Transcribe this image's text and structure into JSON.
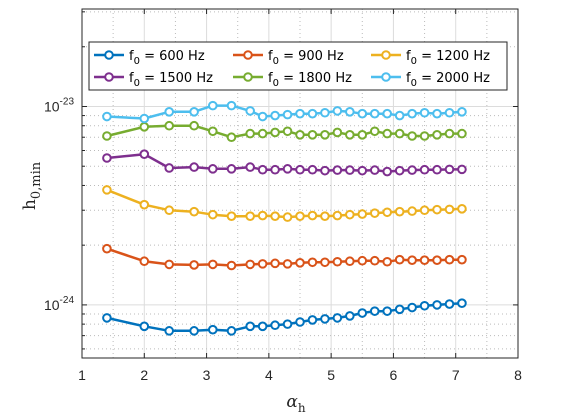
{
  "chart_data": {
    "type": "line",
    "xlabel": "α",
    "xlabel_sub": "h",
    "ylabel": "h",
    "ylabel_sub": "0,min",
    "xlim": [
      1,
      8
    ],
    "ylim": [
      5.4e-25,
      3.1e-23
    ],
    "yscale": "log",
    "grid": "major-and-minor",
    "xticks": [
      1,
      2,
      3,
      4,
      5,
      6,
      7,
      8
    ],
    "ytick_labels": [
      {
        "value": 1e-24,
        "base": "10",
        "exp": "-24"
      },
      {
        "value": 1e-23,
        "base": "10",
        "exp": "-23"
      }
    ],
    "legend": {
      "placement": "top",
      "columns": 3
    },
    "x": [
      1.4,
      2.0,
      2.4,
      2.8,
      3.1,
      3.4,
      3.7,
      3.9,
      4.1,
      4.3,
      4.5,
      4.7,
      4.9,
      5.1,
      5.3,
      5.5,
      5.7,
      5.9,
      6.1,
      6.3,
      6.5,
      6.7,
      6.9,
      7.1
    ],
    "series": [
      {
        "name": "f_0 = 600 Hz",
        "label_main": "f",
        "label_sub": "0",
        "label_rest": " = 600 Hz",
        "color": "#0072BD",
        "values": [
          8.6e-25,
          7.8e-25,
          7.4e-25,
          7.4e-25,
          7.5e-25,
          7.4e-25,
          7.8e-25,
          7.8e-25,
          7.9e-25,
          8e-25,
          8.2e-25,
          8.4e-25,
          8.5e-25,
          8.6e-25,
          8.8e-25,
          9.1e-25,
          9.3e-25,
          9.3e-25,
          9.5e-25,
          9.7e-25,
          9.9e-25,
          1e-24,
          1.01e-24,
          1.02e-24
        ]
      },
      {
        "name": "f_0 = 900 Hz",
        "label_main": "f",
        "label_sub": "0",
        "label_rest": " = 900 Hz",
        "color": "#D95319",
        "values": [
          1.92e-24,
          1.66e-24,
          1.6e-24,
          1.59e-24,
          1.6e-24,
          1.58e-24,
          1.6e-24,
          1.61e-24,
          1.62e-24,
          1.61e-24,
          1.63e-24,
          1.64e-24,
          1.64e-24,
          1.65e-24,
          1.66e-24,
          1.67e-24,
          1.67e-24,
          1.65e-24,
          1.69e-24,
          1.68e-24,
          1.68e-24,
          1.68e-24,
          1.69e-24,
          1.69e-24
        ]
      },
      {
        "name": "f_0 = 1200 Hz",
        "label_main": "f",
        "label_sub": "0",
        "label_rest": " = 1200 Hz",
        "color": "#EDB120",
        "values": [
          3.8e-24,
          3.2e-24,
          3e-24,
          2.95e-24,
          2.85e-24,
          2.8e-24,
          2.8e-24,
          2.82e-24,
          2.8e-24,
          2.77e-24,
          2.8e-24,
          2.82e-24,
          2.8e-24,
          2.82e-24,
          2.85e-24,
          2.87e-24,
          2.9e-24,
          2.93e-24,
          2.95e-24,
          2.97e-24,
          3e-24,
          3.02e-24,
          3.03e-24,
          3.05e-24
        ]
      },
      {
        "name": "f_0 = 1500 Hz",
        "label_main": "f",
        "label_sub": "0",
        "label_rest": " = 1500 Hz",
        "color": "#7E2F8E",
        "values": [
          5.5e-24,
          5.75e-24,
          4.9e-24,
          4.95e-24,
          4.85e-24,
          4.85e-24,
          4.95e-24,
          4.8e-24,
          4.8e-24,
          4.85e-24,
          4.8e-24,
          4.8e-24,
          4.75e-24,
          4.78e-24,
          4.78e-24,
          4.75e-24,
          4.78e-24,
          4.7e-24,
          4.75e-24,
          4.78e-24,
          4.8e-24,
          4.8e-24,
          4.82e-24,
          4.82e-24
        ]
      },
      {
        "name": "f_0 = 1800 Hz",
        "label_main": "f",
        "label_sub": "0",
        "label_rest": " = 1800 Hz",
        "color": "#77AC30",
        "values": [
          7.1e-24,
          7.9e-24,
          8e-24,
          8e-24,
          7.5e-24,
          7e-24,
          7.3e-24,
          7.3e-24,
          7.4e-24,
          7.5e-24,
          7.2e-24,
          7.2e-24,
          7.2e-24,
          7.4e-24,
          7.2e-24,
          7.2e-24,
          7.5e-24,
          7.3e-24,
          7.3e-24,
          7.1e-24,
          7.1e-24,
          7.2e-24,
          7.3e-24,
          7.3e-24
        ]
      },
      {
        "name": "f_0 = 2000 Hz",
        "label_main": "f",
        "label_sub": "0",
        "label_rest": " = 2000 Hz",
        "color": "#4DBEEE",
        "values": [
          8.9e-24,
          8.7e-24,
          9.4e-24,
          9.4e-24,
          1.01e-23,
          1.01e-23,
          9.5e-24,
          8.9e-24,
          9e-24,
          9.1e-24,
          9.2e-24,
          9.2e-24,
          9.3e-24,
          9.5e-24,
          9.4e-24,
          9.2e-24,
          9.2e-24,
          9.2e-24,
          9e-24,
          9.2e-24,
          9.3e-24,
          9.2e-24,
          9.3e-24,
          9.4e-24
        ]
      }
    ]
  }
}
